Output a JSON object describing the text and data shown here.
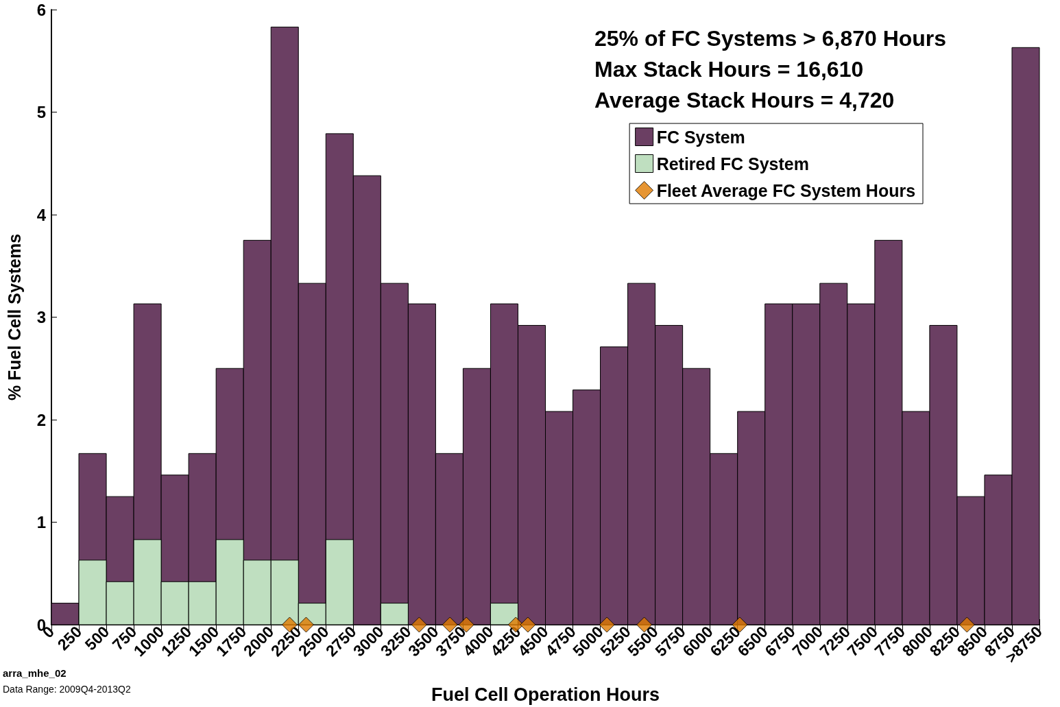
{
  "chart_data": {
    "type": "histogram",
    "xlabel": "Fuel Cell Operation Hours",
    "ylabel": "% Fuel Cell Systems",
    "bins": [
      0,
      250,
      500,
      750,
      1000,
      1250,
      1500,
      1750,
      2000,
      2250,
      2500,
      2750,
      3000,
      3250,
      3500,
      3750,
      4000,
      4250,
      4500,
      4750,
      5000,
      5250,
      5500,
      5750,
      6000,
      6250,
      6500,
      6750,
      7000,
      7250,
      7500,
      7750,
      8000,
      8250,
      8500,
      8750,
      9000
    ],
    "series": [
      {
        "name": "FC System",
        "color": "#6b3f63",
        "values": [
          0.21,
          1.67,
          1.25,
          3.13,
          1.46,
          1.67,
          2.5,
          3.75,
          5.83,
          3.33,
          4.79,
          4.38,
          3.33,
          3.13,
          1.67,
          2.5,
          3.13,
          2.92,
          2.08,
          2.29,
          2.71,
          3.33,
          2.92,
          2.5,
          1.67,
          2.08,
          3.13,
          3.13,
          3.33,
          3.13,
          3.75,
          2.08,
          2.92,
          1.25,
          1.46,
          5.63
        ]
      },
      {
        "name": "Retired FC System",
        "color": "#bfdfc0",
        "values": [
          0,
          0.63,
          0.42,
          0.83,
          0.42,
          0.42,
          0.83,
          0.63,
          0.63,
          0.21,
          0.83,
          0,
          0.21,
          0,
          0,
          0,
          0.21,
          0,
          0,
          0,
          0,
          0,
          0,
          0,
          0,
          0,
          0,
          0,
          0,
          0,
          0,
          0,
          0,
          0,
          0,
          0
        ]
      },
      {
        "name": "Fleet Average FC System Hours",
        "type": "scatter",
        "marker": "diamond",
        "color": "#e07b00",
        "x": [
          2170,
          2320,
          3350,
          3630,
          3780,
          4230,
          4340,
          5060,
          5400,
          6270,
          8340
        ],
        "values": [
          0,
          0,
          0,
          0,
          0,
          0,
          0,
          0,
          0,
          0,
          0
        ]
      }
    ],
    "xlim": [
      0,
      9000
    ],
    "xticks": [
      0,
      250,
      500,
      750,
      1000,
      1250,
      1500,
      1750,
      2000,
      2250,
      2500,
      2750,
      3000,
      3250,
      3500,
      3750,
      4000,
      4250,
      4500,
      4750,
      5000,
      5250,
      5500,
      5750,
      6000,
      6250,
      6500,
      6750,
      7000,
      7250,
      7500,
      7750,
      8000,
      8250,
      8500,
      8750,
      {
        "value": 9000,
        "label": ">8750"
      }
    ],
    "ylim": [
      0,
      6
    ],
    "yticks": [
      0,
      1,
      2,
      3,
      4,
      5,
      6
    ],
    "grid": false,
    "legend": "top right",
    "annotations": [
      "25% of FC Systems > 6,870 Hours",
      "Max Stack Hours = 16,610",
      "Average Stack Hours = 4,720",
      "arra_mhe_02",
      "Data Range: 2009Q4-2013Q2"
    ]
  }
}
